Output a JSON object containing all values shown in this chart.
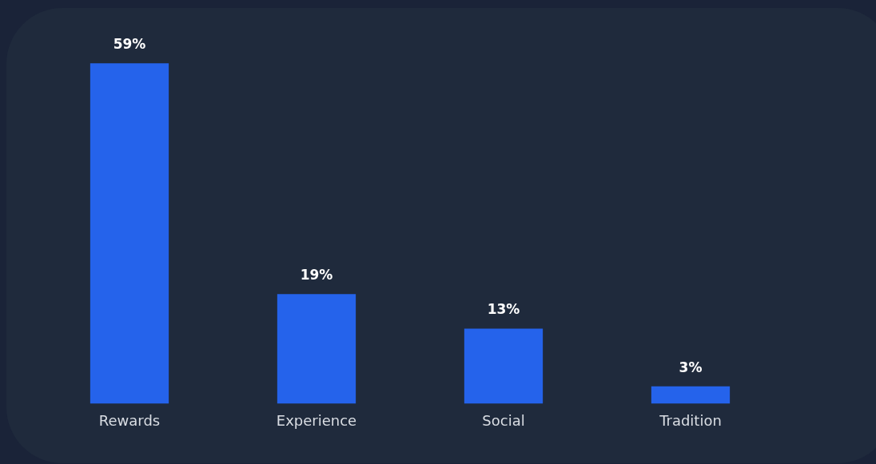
{
  "chart_data": {
    "type": "bar",
    "categories": [
      "Rewards",
      "Experience",
      "Social",
      "Tradition"
    ],
    "values": [
      59,
      19,
      13,
      3
    ],
    "value_labels": [
      "59%",
      "19%",
      "13%",
      "3%"
    ],
    "color": "#2563eb",
    "grid": false,
    "legend": false,
    "tick_labels": "x"
  }
}
